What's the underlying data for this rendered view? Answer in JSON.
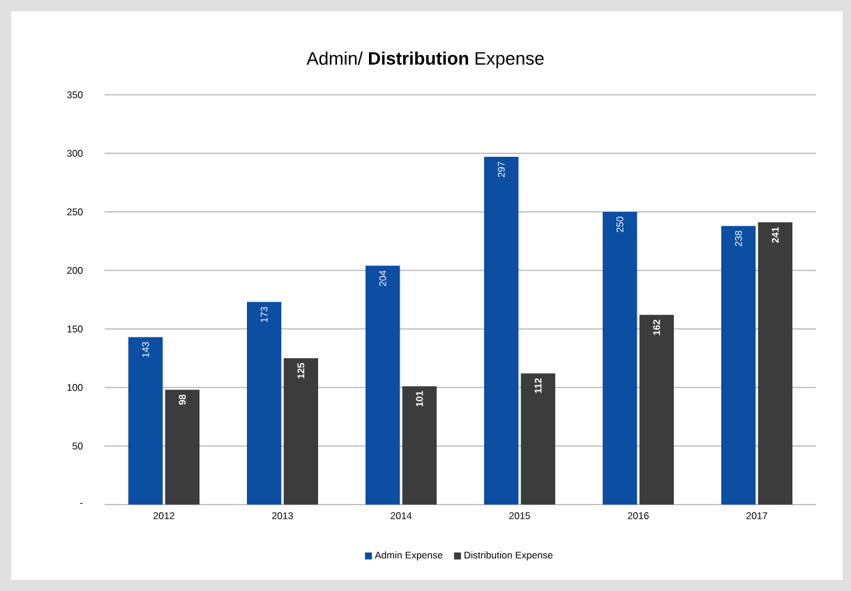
{
  "chart_data": {
    "type": "bar",
    "title": "Admin/ **Distribution** Expense",
    "categories": [
      "2012",
      "2013",
      "2014",
      "2015",
      "2016",
      "2017"
    ],
    "series": [
      {
        "name": "Admin Expense",
        "color": "#0b4ea2",
        "values": [
          143,
          173,
          204,
          297,
          250,
          238
        ]
      },
      {
        "name": "Distribution Expense",
        "color": "#3c3c3c",
        "values": [
          98,
          125,
          101,
          112,
          162,
          241
        ]
      }
    ],
    "ylim": [
      0,
      350
    ],
    "yticks": [
      {
        "value": 0,
        "label": "-"
      },
      50,
      100,
      150,
      200,
      250,
      300,
      350
    ],
    "grid": "y",
    "legend": "bottom",
    "data_labels": true
  }
}
